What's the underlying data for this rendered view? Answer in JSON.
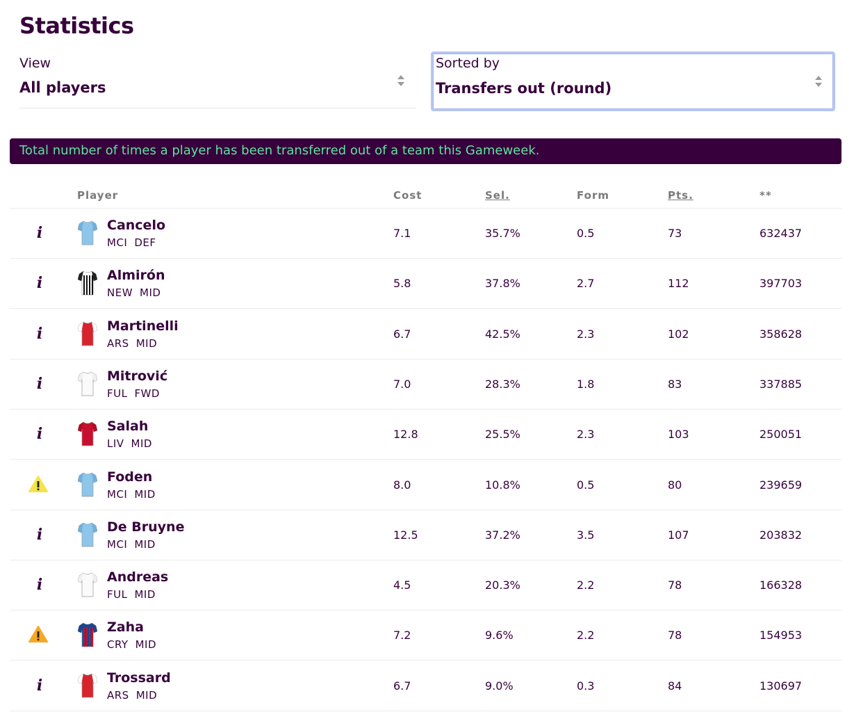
{
  "page_title": "Statistics",
  "view": {
    "label": "View",
    "value": "All players"
  },
  "sort": {
    "label": "Sorted by",
    "value": "Transfers out (round)"
  },
  "banner": "Total number of times a player has been transferred out of a team this Gameweek.",
  "headers": {
    "player": "Player",
    "cost": "Cost",
    "sel": "Sel.",
    "form": "Form",
    "pts": "Pts.",
    "stat": "**"
  },
  "colors": {
    "primary": "#37003c",
    "banner_text": "#5fe39e",
    "warn_yellow": "#f5e34a",
    "warn_orange": "#f7a823"
  },
  "players": [
    {
      "status": "info",
      "kit": "MCI",
      "name": "Cancelo",
      "team": "MCI",
      "pos": "DEF",
      "cost": "7.1",
      "sel": "35.7%",
      "form": "0.5",
      "pts": "73",
      "transfers_out": "632437"
    },
    {
      "status": "info",
      "kit": "NEW",
      "name": "Almirón",
      "team": "NEW",
      "pos": "MID",
      "cost": "5.8",
      "sel": "37.8%",
      "form": "2.7",
      "pts": "112",
      "transfers_out": "397703"
    },
    {
      "status": "info",
      "kit": "ARS",
      "name": "Martinelli",
      "team": "ARS",
      "pos": "MID",
      "cost": "6.7",
      "sel": "42.5%",
      "form": "2.3",
      "pts": "102",
      "transfers_out": "358628"
    },
    {
      "status": "info",
      "kit": "FUL",
      "name": "Mitrović",
      "team": "FUL",
      "pos": "FWD",
      "cost": "7.0",
      "sel": "28.3%",
      "form": "1.8",
      "pts": "83",
      "transfers_out": "337885"
    },
    {
      "status": "info",
      "kit": "LIV",
      "name": "Salah",
      "team": "LIV",
      "pos": "MID",
      "cost": "12.8",
      "sel": "25.5%",
      "form": "2.3",
      "pts": "103",
      "transfers_out": "250051"
    },
    {
      "status": "warn-yellow",
      "kit": "MCI",
      "name": "Foden",
      "team": "MCI",
      "pos": "MID",
      "cost": "8.0",
      "sel": "10.8%",
      "form": "0.5",
      "pts": "80",
      "transfers_out": "239659"
    },
    {
      "status": "info",
      "kit": "MCI",
      "name": "De Bruyne",
      "team": "MCI",
      "pos": "MID",
      "cost": "12.5",
      "sel": "37.2%",
      "form": "3.5",
      "pts": "107",
      "transfers_out": "203832"
    },
    {
      "status": "info",
      "kit": "FUL",
      "name": "Andreas",
      "team": "FUL",
      "pos": "MID",
      "cost": "4.5",
      "sel": "20.3%",
      "form": "2.2",
      "pts": "78",
      "transfers_out": "166328"
    },
    {
      "status": "warn-orange",
      "kit": "CRY",
      "name": "Zaha",
      "team": "CRY",
      "pos": "MID",
      "cost": "7.2",
      "sel": "9.6%",
      "form": "2.2",
      "pts": "78",
      "transfers_out": "154953"
    },
    {
      "status": "info",
      "kit": "ARS",
      "name": "Trossard",
      "team": "ARS",
      "pos": "MID",
      "cost": "6.7",
      "sel": "9.0%",
      "form": "0.3",
      "pts": "84",
      "transfers_out": "130697"
    }
  ]
}
